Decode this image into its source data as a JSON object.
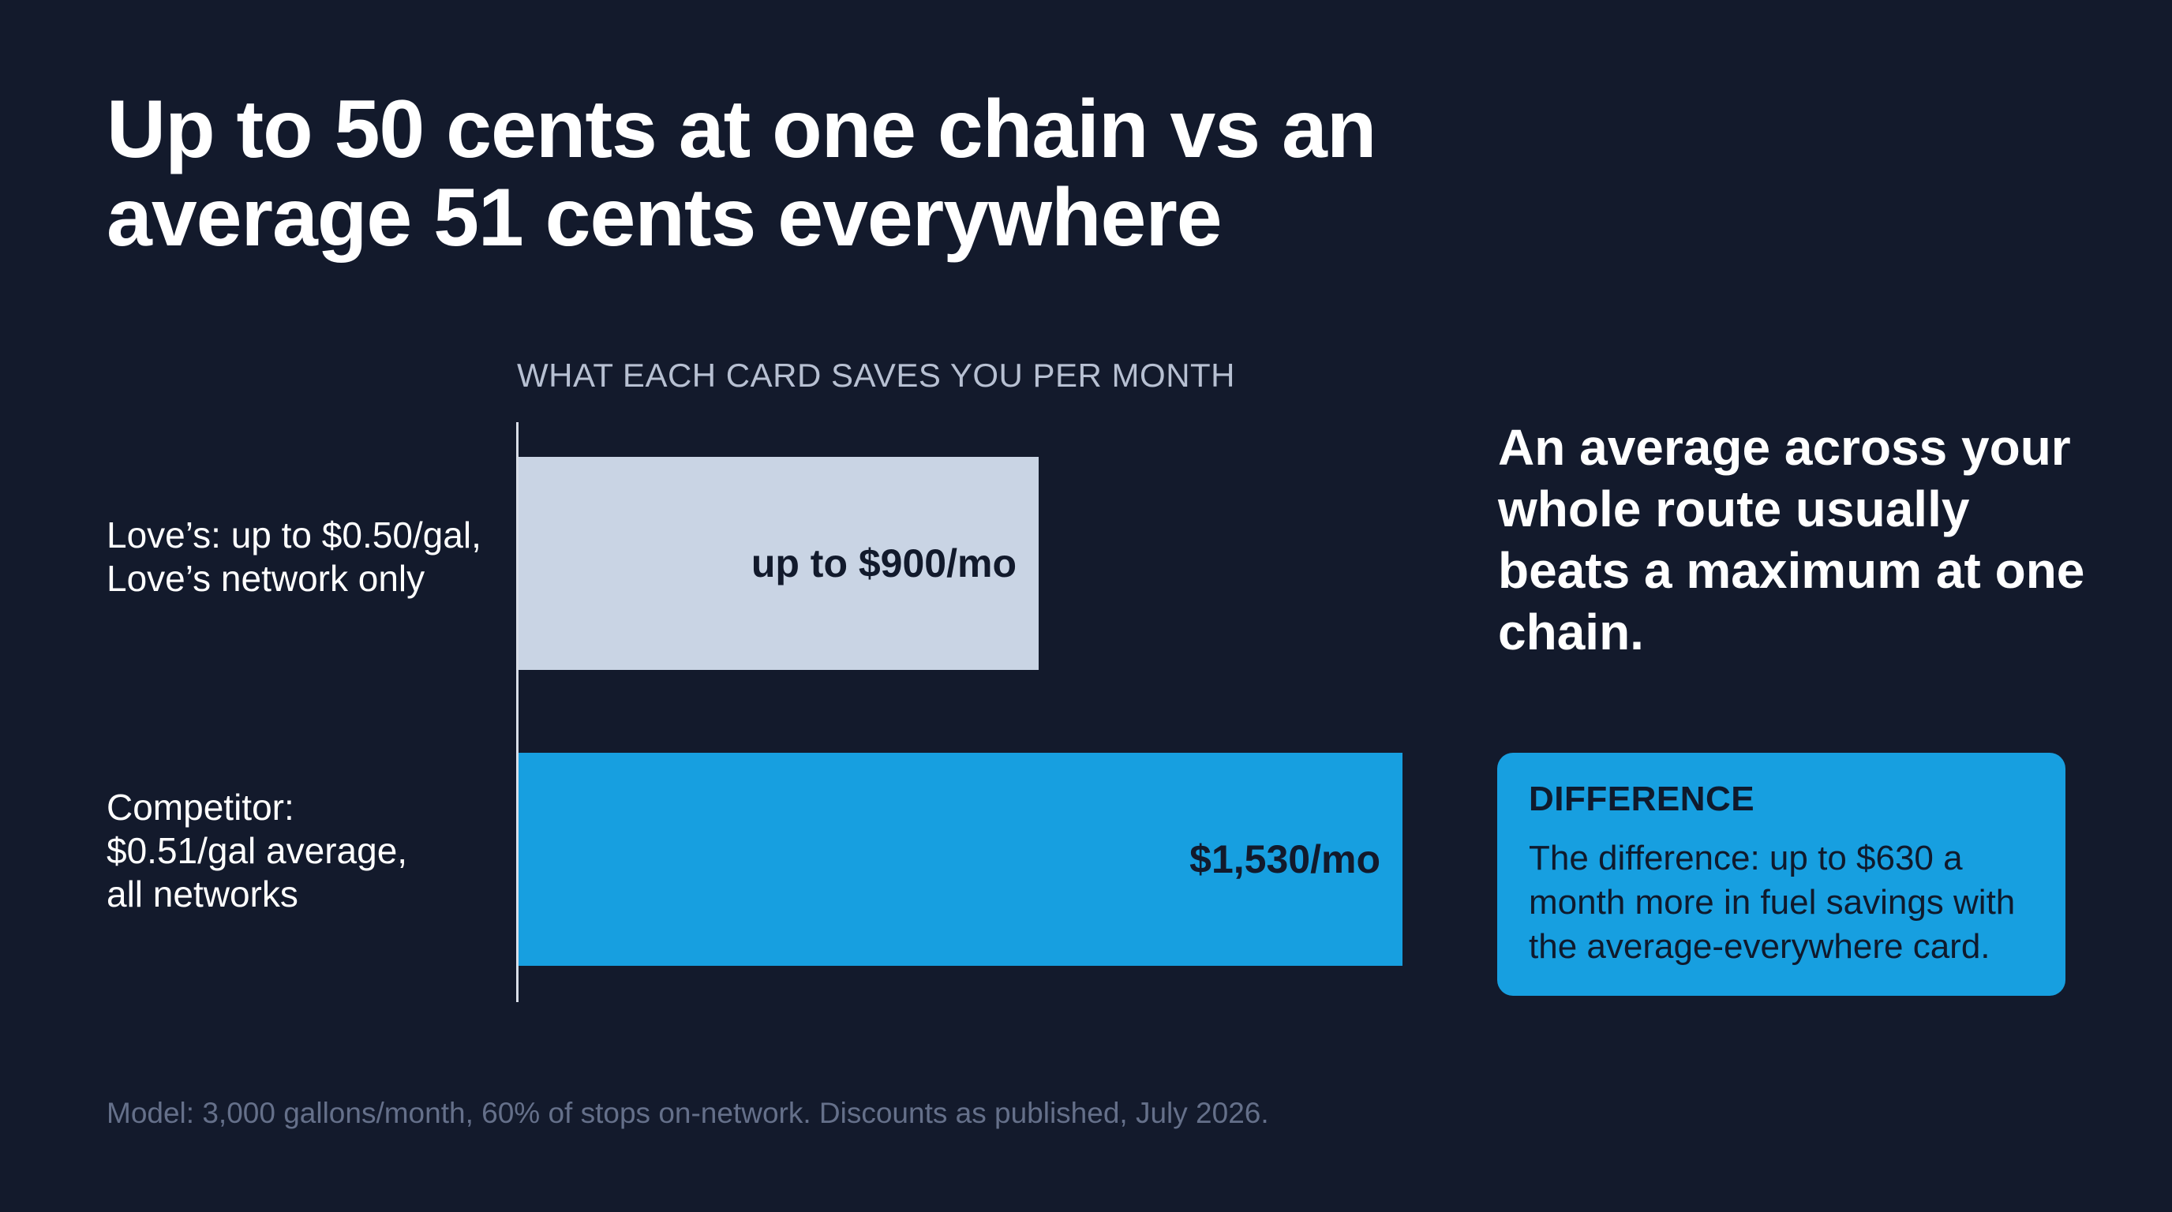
{
  "title": "Up to 50 cents at one chain vs an average 51 cents everywhere",
  "chart_data": {
    "type": "bar",
    "orientation": "horizontal",
    "title": "WHAT EACH CARD SAVES YOU PER MONTH",
    "categories": [
      "Love’s: up to $0.50/gal,\nLove’s network only",
      "Competitor:\n$0.51/gal average,\nall networks"
    ],
    "values": [
      900,
      1530
    ],
    "data_labels": [
      "up to $900/mo",
      "$1,530/mo"
    ],
    "colors": [
      "#c9d4e4",
      "#179fe0"
    ],
    "xlim": [
      0,
      1530
    ],
    "grid": false,
    "legend": "none"
  },
  "takeaway": "An average across your whole route usually beats a maximum at one chain.",
  "callout": {
    "title": "DIFFERENCE",
    "body": "The difference: up to $630 a month more in fuel savings with the average-everywhere card."
  },
  "footnote": "Model: 3,000 gallons/month, 60% of stops on-network. Discounts as published, July 2026."
}
